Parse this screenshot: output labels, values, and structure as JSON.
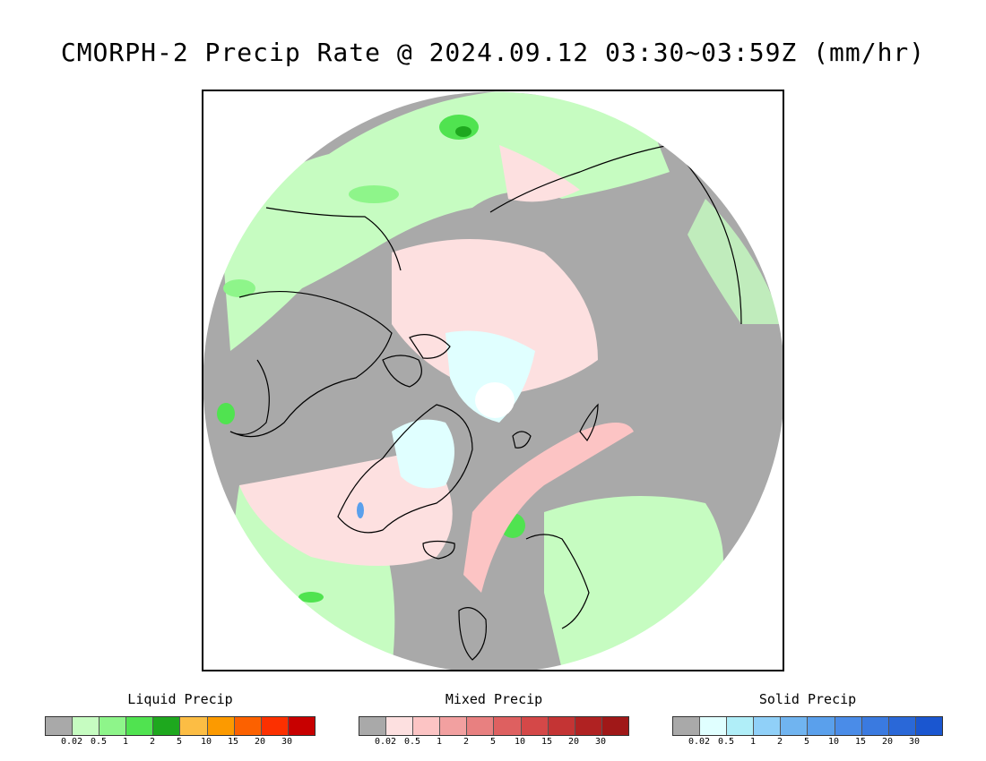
{
  "title": "CMORPH-2 Precip Rate @ 2024.09.12 03:30~03:59Z (mm/hr)",
  "map": {
    "projection": "north-polar-stereographic",
    "background_color": "#a9a9a9",
    "ocean_color": "#a9a9a9",
    "coastline_color": "#000000"
  },
  "legends": [
    {
      "name": "liquid",
      "title": "Liquid Precip",
      "colors": [
        "#a9a9a9",
        "#c6fcc1",
        "#8ef58a",
        "#50e350",
        "#1ea81e",
        "#fcbd44",
        "#fc9a00",
        "#fc6100",
        "#fc3000",
        "#c80000"
      ],
      "ticks": [
        "0.02",
        "0.5",
        "1",
        "2",
        "5",
        "10",
        "15",
        "20",
        "30"
      ]
    },
    {
      "name": "mixed",
      "title": "Mixed Precip",
      "colors": [
        "#a9a9a9",
        "#fde0e0",
        "#fcc4c4",
        "#f2a0a0",
        "#e88080",
        "#de6060",
        "#d44848",
        "#c43434",
        "#b02222",
        "#a01818"
      ],
      "ticks": [
        "0.02",
        "0.5",
        "1",
        "2",
        "5",
        "10",
        "15",
        "20",
        "30"
      ]
    },
    {
      "name": "solid",
      "title": "Solid Precip",
      "colors": [
        "#a9a9a9",
        "#e0ffff",
        "#b0eef8",
        "#90d0f8",
        "#70b4f0",
        "#5aa0ec",
        "#4a8ce8",
        "#3a7ae0",
        "#2a68d8",
        "#1a56d0"
      ],
      "ticks": [
        "0.02",
        "0.5",
        "1",
        "2",
        "5",
        "10",
        "15",
        "20",
        "30"
      ]
    }
  ]
}
